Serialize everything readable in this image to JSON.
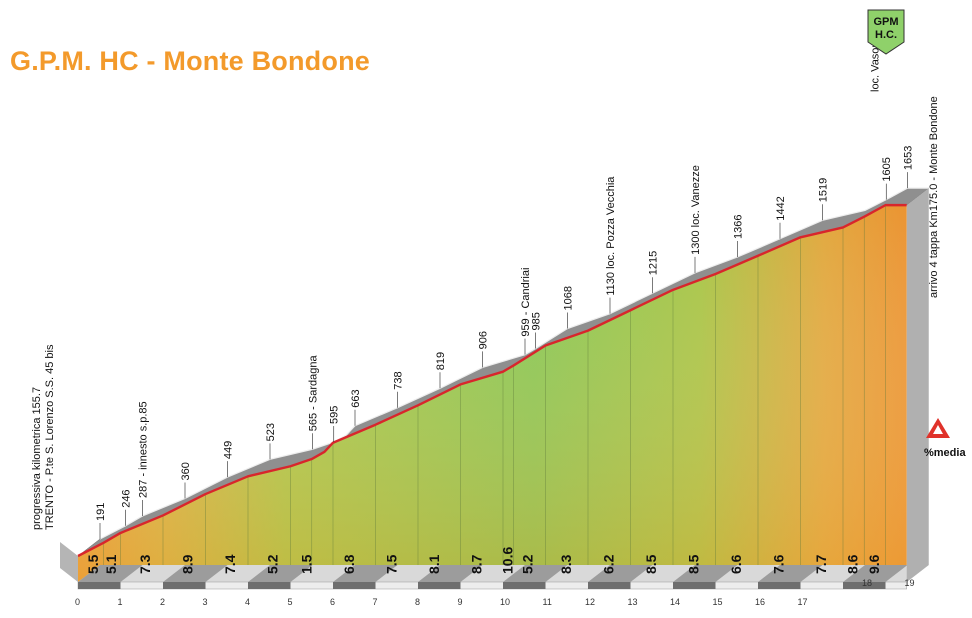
{
  "title": "G.P.M. HC - Monte Bondone",
  "gpm_badge": {
    "line1": "GPM",
    "line2": "H.C.",
    "color": "#8fd16a"
  },
  "legend_label": "%media",
  "colors": {
    "title": "#f39a2b",
    "profile_line": "#d8262c",
    "top_band": "#8f8f8f",
    "bottom_band": "#8f8f8f"
  },
  "chart_data": {
    "type": "area",
    "title": "G.P.M. HC - Monte Bondone",
    "xlabel": "",
    "ylabel": "",
    "x": [
      0,
      0.6,
      1,
      2,
      3,
      4,
      5,
      5.5,
      5.8,
      6,
      7,
      8,
      9,
      10,
      10.25,
      11,
      12,
      13,
      14,
      15,
      16,
      17,
      18,
      18.5,
      19,
      19.5
    ],
    "y": [
      191,
      246,
      287,
      360,
      449,
      523,
      565,
      595,
      625,
      663,
      738,
      819,
      906,
      959,
      985,
      1068,
      1130,
      1215,
      1300,
      1366,
      1442,
      1519,
      1560,
      1605,
      1653,
      1653
    ],
    "xlim": [
      0,
      19.5
    ],
    "km_ticks": [
      "0",
      "1",
      "2",
      "3",
      "4",
      "5",
      "6",
      "7",
      "8",
      "9",
      "10",
      "11",
      "12",
      "13",
      "14",
      "15",
      "16",
      "17",
      "18",
      "19"
    ],
    "gradients": [
      "5.5",
      "5.1",
      "7.3",
      "8.9",
      "7.4",
      "5.2",
      "1.5",
      "6.8",
      "7.5",
      "8.1",
      "8.7",
      "10.6",
      "5.2",
      "8.3",
      "6.2",
      "8.5",
      "8.5",
      "6.6",
      "7.6",
      "7.7",
      "8.6",
      "9.6"
    ],
    "point_labels": [
      {
        "x": 0,
        "text": "191"
      },
      {
        "x": 0.6,
        "text": "246"
      },
      {
        "x": 1,
        "text": "287  -  innesto s.p.85"
      },
      {
        "x": 2,
        "text": "360"
      },
      {
        "x": 3,
        "text": "449"
      },
      {
        "x": 4,
        "text": "523"
      },
      {
        "x": 5,
        "text": "565  -  Sardagna"
      },
      {
        "x": 5.5,
        "text": "595"
      },
      {
        "x": 6,
        "text": "663"
      },
      {
        "x": 7,
        "text": "738"
      },
      {
        "x": 8,
        "text": "819"
      },
      {
        "x": 9,
        "text": "906"
      },
      {
        "x": 10,
        "text": "959  -  Candriai"
      },
      {
        "x": 10.25,
        "text": "985"
      },
      {
        "x": 11,
        "text": "1068"
      },
      {
        "x": 12,
        "text": "1130  loc.  Pozza Vecchia"
      },
      {
        "x": 13,
        "text": "1215"
      },
      {
        "x": 14,
        "text": "1300  loc.  Vanezze"
      },
      {
        "x": 15,
        "text": "1366"
      },
      {
        "x": 16,
        "text": "1442"
      },
      {
        "x": 17,
        "text": "1519"
      },
      {
        "x": 18.5,
        "text": "1605"
      },
      {
        "x": 19,
        "text": "1653"
      }
    ],
    "start_labels": [
      "progressiva  kilometrica  155.7",
      "TRENTO  -  P.te  S.  Lorenzo  S.S.  45  bis"
    ],
    "loc_vason": "loc.  Vason",
    "finish_label": "arrivo  4  tappa  Km175.0  -  Monte  Bondone"
  }
}
